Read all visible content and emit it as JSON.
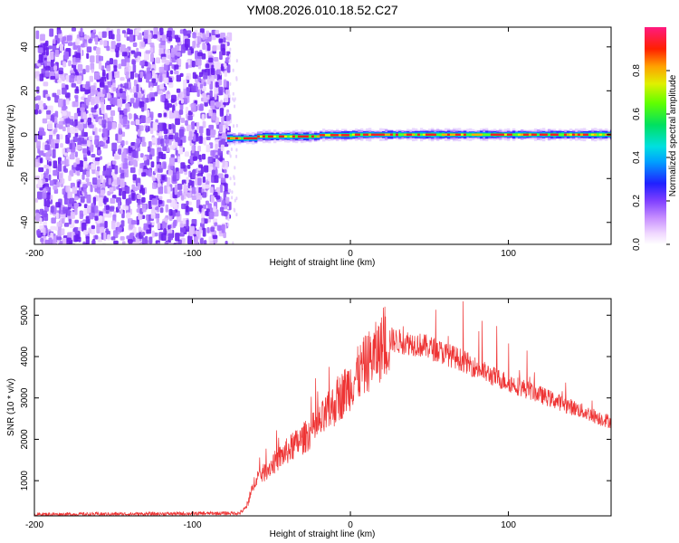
{
  "title": "YM08.2026.010.18.52.C27",
  "chart_data": [
    {
      "type": "heatmap",
      "title": "YM08.2026.010.18.52.C27",
      "xlabel": "Height of straight line (km)",
      "ylabel": "Frequency (Hz)",
      "xlim": [
        -200,
        165
      ],
      "ylim": [
        -50,
        49
      ],
      "xticks": [
        "-200",
        "-100",
        "0",
        "100"
      ],
      "xtick_values": [
        -200,
        -100,
        0,
        100
      ],
      "yticks": [
        "-40",
        "-20",
        "0",
        "20",
        "40"
      ],
      "ytick_values": [
        -40,
        -20,
        0,
        20,
        40
      ],
      "noise_region_x": [
        -200,
        -78
      ],
      "signal_start_x": -78,
      "signal_frequency_hz": 0,
      "signal_band_hz": [
        -3,
        3
      ],
      "colorbar": {
        "label": "Normalized spectral amplitude",
        "range": [
          0,
          1
        ],
        "ticks": [
          "0.0",
          "0.2",
          "0.4",
          "0.6",
          "0.8"
        ],
        "tick_values": [
          0.0,
          0.2,
          0.4,
          0.6,
          0.8
        ],
        "colormap": "rainbow-white-to-magenta"
      }
    },
    {
      "type": "line",
      "xlabel": "Height of straight line (km)",
      "ylabel": "SNR (10 * v/v)",
      "xlim": [
        -200,
        165
      ],
      "ylim": [
        150,
        5400
      ],
      "xticks": [
        "-200",
        "-100",
        "0",
        "100"
      ],
      "xtick_values": [
        -200,
        -100,
        0,
        100
      ],
      "yticks": [
        "1000",
        "2000",
        "3000",
        "4000",
        "5000"
      ],
      "ytick_values": [
        1000,
        2000,
        3000,
        4000,
        5000
      ],
      "color": "#ee3333",
      "envelope_x": [
        -200,
        -130,
        -70,
        -66,
        -62,
        -60,
        -55,
        -50,
        -40,
        -30,
        -20,
        -10,
        0,
        10,
        20,
        25,
        30,
        40,
        50,
        60,
        70,
        80,
        90,
        100,
        110,
        120,
        130,
        140,
        150,
        160,
        165
      ],
      "envelope_y": [
        190,
        200,
        220,
        350,
        800,
        1100,
        1200,
        1400,
        1750,
        2050,
        2400,
        2900,
        3400,
        3900,
        4300,
        4450,
        4400,
        4350,
        4250,
        4100,
        3950,
        3750,
        3550,
        3400,
        3250,
        3100,
        2950,
        2800,
        2650,
        2500,
        2450
      ]
    }
  ]
}
